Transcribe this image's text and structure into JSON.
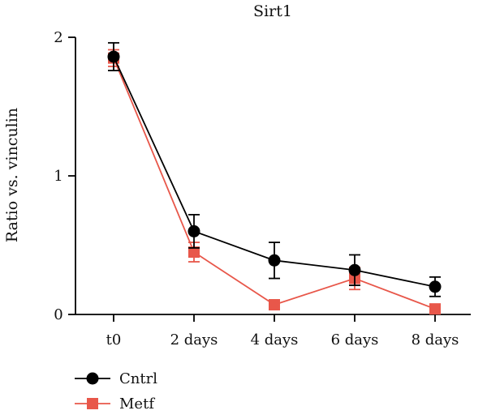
{
  "chart_data": {
    "type": "line",
    "title": "Sirt1",
    "xlabel": "",
    "ylabel": "Ratio vs. vinculin",
    "categories": [
      "t0",
      "2 days",
      "4 days",
      "6 days",
      "8 days"
    ],
    "ylim": [
      0,
      2
    ],
    "yticks": [
      0,
      1,
      2
    ],
    "legend_position": "bottom-left",
    "series": [
      {
        "name": "Cntrl",
        "marker": "circle",
        "color": "#000000",
        "values": [
          1.86,
          0.6,
          0.39,
          0.32,
          0.2
        ],
        "error": [
          0.1,
          0.12,
          0.13,
          0.11,
          0.07
        ]
      },
      {
        "name": "Metf",
        "marker": "square",
        "color": "#e8574a",
        "values": [
          1.85,
          0.45,
          0.07,
          0.26,
          0.04
        ],
        "error": [
          0.06,
          0.07,
          0.03,
          0.08,
          0.02
        ]
      }
    ]
  }
}
